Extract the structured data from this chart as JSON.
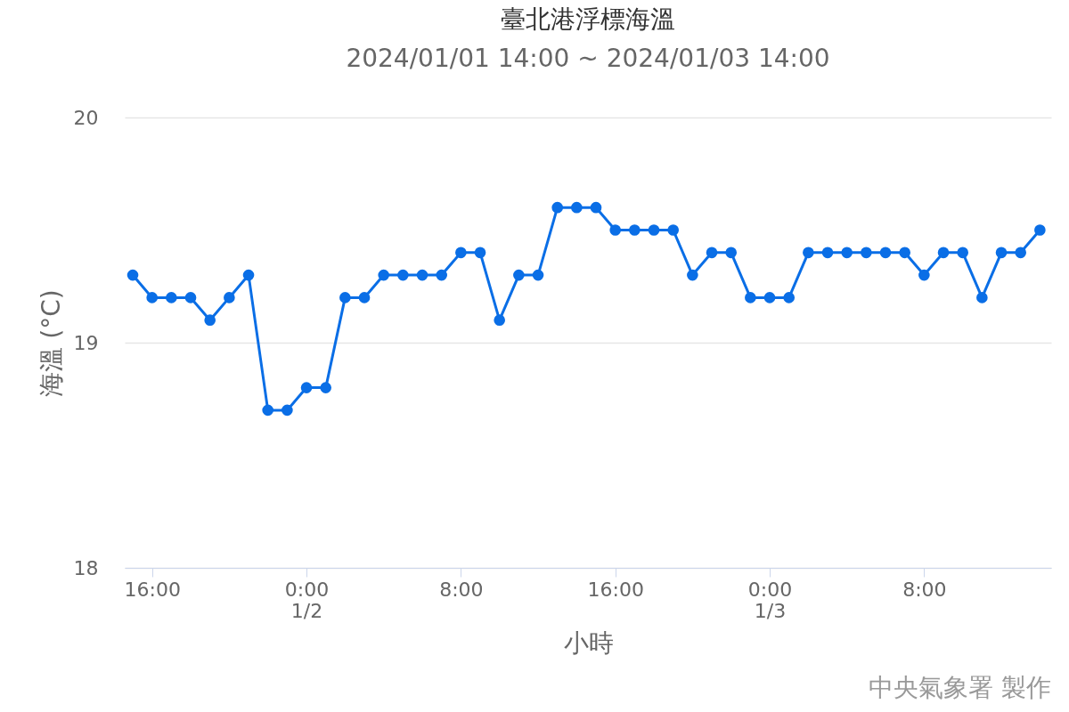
{
  "chart_data": {
    "type": "line",
    "title": "臺北港浮標海溫",
    "subtitle": "2024/01/01 14:00 ~ 2024/01/03 14:00",
    "xlabel": "小時",
    "ylabel": "海溫 (°C)",
    "x": [
      "2024-01-01T15:00",
      "2024-01-01T16:00",
      "2024-01-01T17:00",
      "2024-01-01T18:00",
      "2024-01-01T19:00",
      "2024-01-01T20:00",
      "2024-01-01T21:00",
      "2024-01-01T22:00",
      "2024-01-01T23:00",
      "2024-01-02T00:00",
      "2024-01-02T01:00",
      "2024-01-02T02:00",
      "2024-01-02T03:00",
      "2024-01-02T04:00",
      "2024-01-02T05:00",
      "2024-01-02T06:00",
      "2024-01-02T07:00",
      "2024-01-02T08:00",
      "2024-01-02T09:00",
      "2024-01-02T10:00",
      "2024-01-02T11:00",
      "2024-01-02T12:00",
      "2024-01-02T13:00",
      "2024-01-02T14:00",
      "2024-01-02T15:00",
      "2024-01-02T16:00",
      "2024-01-02T17:00",
      "2024-01-02T18:00",
      "2024-01-02T19:00",
      "2024-01-02T20:00",
      "2024-01-02T21:00",
      "2024-01-02T22:00",
      "2024-01-02T23:00",
      "2024-01-03T00:00",
      "2024-01-03T01:00",
      "2024-01-03T02:00",
      "2024-01-03T03:00",
      "2024-01-03T04:00",
      "2024-01-03T05:00",
      "2024-01-03T06:00",
      "2024-01-03T07:00",
      "2024-01-03T08:00",
      "2024-01-03T09:00",
      "2024-01-03T10:00",
      "2024-01-03T11:00",
      "2024-01-03T12:00",
      "2024-01-03T13:00",
      "2024-01-03T14:00"
    ],
    "series": [
      {
        "color": "#0a6ee6",
        "values": [
          19.3,
          19.2,
          19.2,
          19.2,
          19.1,
          19.2,
          19.3,
          18.7,
          18.7,
          18.8,
          18.8,
          19.2,
          19.2,
          19.3,
          19.3,
          19.3,
          19.3,
          19.4,
          19.4,
          19.1,
          19.3,
          19.3,
          19.6,
          19.6,
          19.6,
          19.5,
          19.5,
          19.5,
          19.5,
          19.3,
          19.4,
          19.4,
          19.2,
          19.2,
          19.2,
          19.4,
          19.4,
          19.4,
          19.4,
          19.4,
          19.4,
          19.3,
          19.4,
          19.4,
          19.2,
          19.4,
          19.4,
          19.5
        ]
      }
    ],
    "xlim": [
      "2024-01-01T14:35",
      "2024-01-03T14:35"
    ],
    "xticks": [
      {
        "value": "2024-01-01T16:00",
        "label": "16:00"
      },
      {
        "value": "2024-01-02T00:00",
        "label": "0:00\n1/2"
      },
      {
        "value": "2024-01-02T08:00",
        "label": "8:00"
      },
      {
        "value": "2024-01-02T16:00",
        "label": "16:00"
      },
      {
        "value": "2024-01-03T00:00",
        "label": "0:00\n1/3"
      },
      {
        "value": "2024-01-03T08:00",
        "label": "8:00"
      }
    ],
    "ylim": [
      18,
      20
    ],
    "yticks": [
      18,
      19,
      20
    ],
    "grid": "y",
    "marker": "circle",
    "line_style": "solid",
    "annotations": [
      "中央氣象署 製作"
    ]
  }
}
